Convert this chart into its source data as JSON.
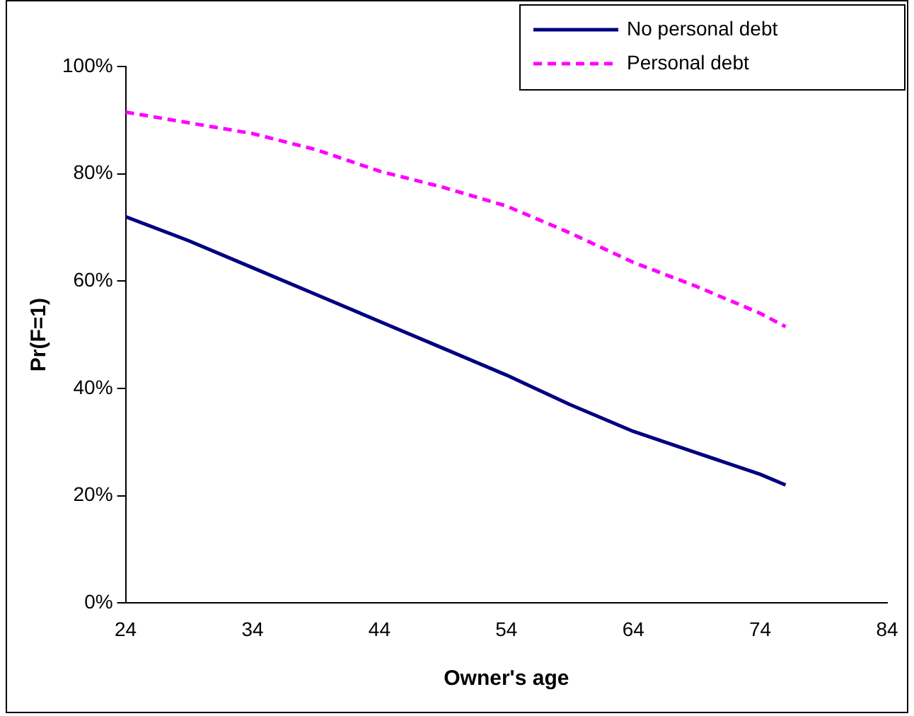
{
  "chart_data": {
    "type": "line",
    "xlabel": "Owner's age",
    "ylabel": "Pr(F=1)",
    "xlim": [
      24,
      84
    ],
    "xticks": [
      24,
      34,
      44,
      54,
      64,
      74,
      84
    ],
    "ylim": [
      0,
      100
    ],
    "yticks": [
      {
        "value": 0,
        "label": "0%"
      },
      {
        "value": 20,
        "label": "20%"
      },
      {
        "value": 40,
        "label": "40%"
      },
      {
        "value": 60,
        "label": "60%"
      },
      {
        "value": 80,
        "label": "80%"
      },
      {
        "value": 100,
        "label": "100%"
      }
    ],
    "grid": false,
    "legend": "top right",
    "marker": "none",
    "series": [
      {
        "name": "No personal debt",
        "color": "#000080",
        "line_style": "solid",
        "x": [
          24,
          29,
          34,
          39,
          44,
          49,
          54,
          59,
          64,
          69,
          74,
          76
        ],
        "values": [
          72,
          67.5,
          62.5,
          57.5,
          52.5,
          47.5,
          42.5,
          37,
          32,
          28,
          24,
          22
        ]
      },
      {
        "name": "Personal debt",
        "color": "#ff00ff",
        "line_style": "dashed",
        "x": [
          24,
          29,
          34,
          39,
          44,
          49,
          54,
          59,
          64,
          69,
          74,
          76
        ],
        "values": [
          91.5,
          89.5,
          87.5,
          84.5,
          80.5,
          77.5,
          74,
          69,
          63.5,
          59,
          54,
          51.5
        ]
      }
    ]
  }
}
